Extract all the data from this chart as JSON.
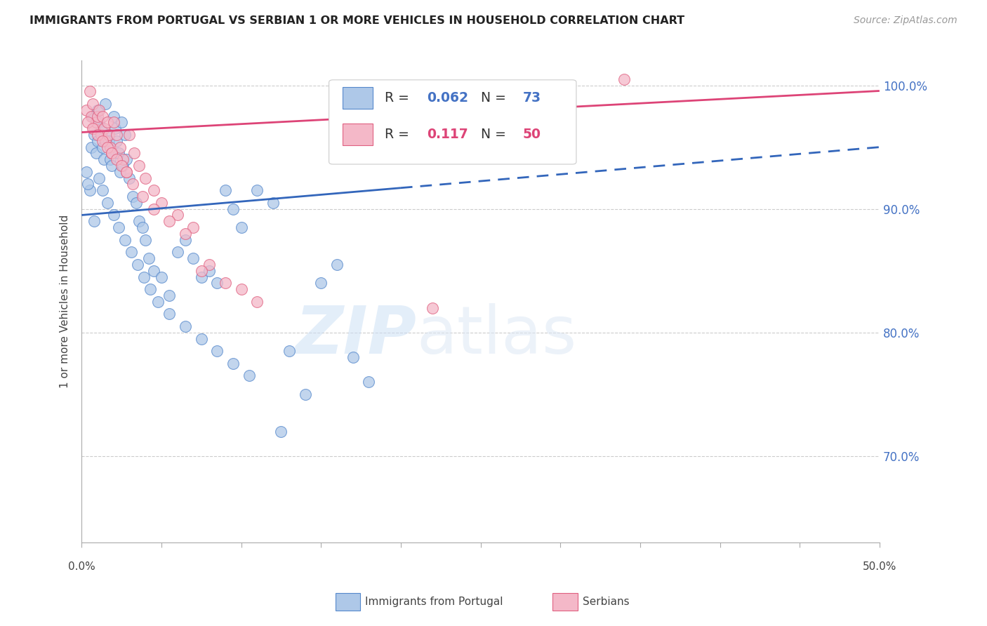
{
  "title": "IMMIGRANTS FROM PORTUGAL VS SERBIAN 1 OR MORE VEHICLES IN HOUSEHOLD CORRELATION CHART",
  "source": "Source: ZipAtlas.com",
  "ylabel": "1 or more Vehicles in Household",
  "yticks": [
    70.0,
    80.0,
    90.0,
    100.0
  ],
  "ytick_labels": [
    "70.0%",
    "80.0%",
    "90.0%",
    "100.0%"
  ],
  "xmin": 0.0,
  "xmax": 50.0,
  "ymin": 63.0,
  "ymax": 102.0,
  "R_blue": 0.062,
  "N_blue": 73,
  "R_pink": 0.117,
  "N_pink": 50,
  "blue_color": "#aec8e8",
  "pink_color": "#f4b8c8",
  "blue_edge_color": "#5588cc",
  "pink_edge_color": "#e06080",
  "blue_line_color": "#3366bb",
  "pink_line_color": "#dd4477",
  "label_color_blue": "#4472c4",
  "label_color_pink": "#dd4477",
  "watermark_zip": "ZIP",
  "watermark_atlas": "atlas",
  "blue_solid_end": 20.0,
  "blue_scatter_x": [
    0.3,
    0.5,
    0.6,
    0.7,
    0.8,
    0.9,
    1.0,
    1.0,
    1.1,
    1.2,
    1.3,
    1.4,
    1.5,
    1.6,
    1.7,
    1.8,
    1.9,
    2.0,
    2.1,
    2.2,
    2.3,
    2.4,
    2.5,
    2.6,
    2.7,
    2.8,
    3.0,
    3.2,
    3.4,
    3.6,
    3.8,
    4.0,
    4.2,
    4.5,
    5.0,
    5.5,
    6.0,
    6.5,
    7.0,
    7.5,
    8.0,
    8.5,
    9.0,
    9.5,
    10.0,
    11.0,
    12.0,
    13.0,
    14.0,
    15.0,
    16.0,
    17.0,
    18.0,
    0.4,
    0.8,
    1.1,
    1.3,
    1.6,
    2.0,
    2.3,
    2.7,
    3.1,
    3.5,
    3.9,
    4.3,
    4.8,
    5.5,
    6.5,
    7.5,
    8.5,
    9.5,
    10.5,
    12.5
  ],
  "blue_scatter_y": [
    93.0,
    91.5,
    95.0,
    97.5,
    96.0,
    94.5,
    98.0,
    95.5,
    97.0,
    96.5,
    95.0,
    94.0,
    98.5,
    96.0,
    95.5,
    94.0,
    93.5,
    97.5,
    96.5,
    95.5,
    94.5,
    93.0,
    97.0,
    93.5,
    96.0,
    94.0,
    92.5,
    91.0,
    90.5,
    89.0,
    88.5,
    87.5,
    86.0,
    85.0,
    84.5,
    83.0,
    86.5,
    87.5,
    86.0,
    84.5,
    85.0,
    84.0,
    91.5,
    90.0,
    88.5,
    91.5,
    90.5,
    78.5,
    75.0,
    84.0,
    85.5,
    78.0,
    76.0,
    92.0,
    89.0,
    92.5,
    91.5,
    90.5,
    89.5,
    88.5,
    87.5,
    86.5,
    85.5,
    84.5,
    83.5,
    82.5,
    81.5,
    80.5,
    79.5,
    78.5,
    77.5,
    76.5,
    72.0
  ],
  "pink_scatter_x": [
    0.3,
    0.5,
    0.6,
    0.7,
    0.8,
    0.9,
    1.0,
    1.1,
    1.2,
    1.3,
    1.4,
    1.5,
    1.6,
    1.7,
    1.8,
    1.9,
    2.0,
    2.2,
    2.4,
    2.6,
    2.8,
    3.0,
    3.3,
    3.6,
    4.0,
    4.5,
    5.0,
    6.0,
    7.0,
    8.0,
    9.0,
    10.0,
    11.0,
    0.4,
    0.7,
    1.0,
    1.3,
    1.6,
    1.9,
    2.2,
    2.5,
    2.8,
    3.2,
    3.8,
    4.5,
    5.5,
    6.5,
    7.5,
    22.0,
    34.0
  ],
  "pink_scatter_y": [
    98.0,
    99.5,
    97.5,
    98.5,
    96.5,
    97.0,
    97.5,
    98.0,
    96.0,
    97.5,
    96.5,
    95.5,
    97.0,
    96.0,
    95.0,
    94.5,
    97.0,
    96.0,
    95.0,
    94.0,
    93.0,
    96.0,
    94.5,
    93.5,
    92.5,
    91.5,
    90.5,
    89.5,
    88.5,
    85.5,
    84.0,
    83.5,
    82.5,
    97.0,
    96.5,
    96.0,
    95.5,
    95.0,
    94.5,
    94.0,
    93.5,
    93.0,
    92.0,
    91.0,
    90.0,
    89.0,
    88.0,
    85.0,
    82.0,
    100.5
  ]
}
